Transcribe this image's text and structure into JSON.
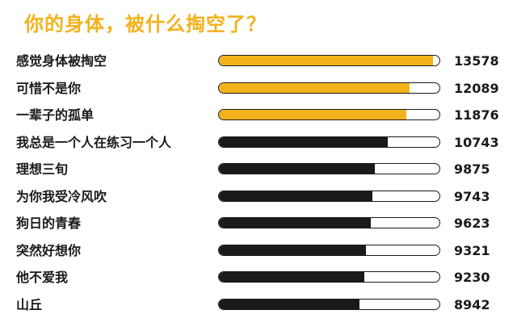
{
  "chart_data": {
    "type": "bar",
    "title": "你的身体，被什么掏空了？",
    "categories": [
      "感觉身体被掏空",
      "可惜不是你",
      "一辈子的孤单",
      "我总是一个人在练习一个人",
      "理想三旬",
      "为你我受冷风吹",
      "狗日的青春",
      "突然好想你",
      "他不爱我",
      "山丘"
    ],
    "values": [
      13578,
      12089,
      11876,
      10743,
      9875,
      9743,
      9623,
      9321,
      9230,
      8942
    ],
    "value_labels": [
      "13578",
      "12089",
      "11876",
      "10743",
      "9875",
      "9743",
      "9623",
      "9321",
      "9230",
      "8942"
    ],
    "xlim": [
      0,
      14000
    ],
    "orientation": "horizontal",
    "highlight_count": 3,
    "colors": {
      "highlight": "#f2b21c",
      "normal": "#1a1a1a",
      "title": "#f2b21c"
    }
  }
}
